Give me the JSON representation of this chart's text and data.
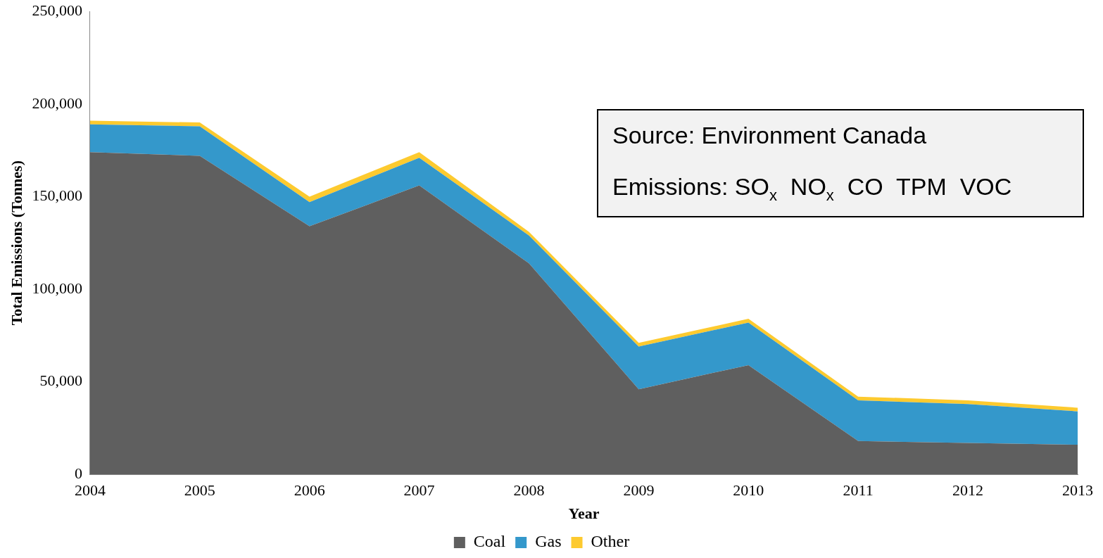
{
  "chart_data": {
    "type": "area",
    "stacked": true,
    "xlabel": "Year",
    "ylabel": "Total Emissions (Tonnes)",
    "categories": [
      "2004",
      "2005",
      "2006",
      "2007",
      "2008",
      "2009",
      "2010",
      "2011",
      "2012",
      "2013"
    ],
    "series": [
      {
        "name": "Coal",
        "color": "#5f5f5f",
        "values": [
          174000,
          172000,
          134000,
          156000,
          114000,
          46000,
          59000,
          18000,
          17000,
          16000
        ]
      },
      {
        "name": "Gas",
        "color": "#3498cb",
        "values": [
          15000,
          16000,
          13000,
          15000,
          15000,
          23000,
          23000,
          22000,
          21000,
          18000
        ]
      },
      {
        "name": "Other",
        "color": "#fdca2f",
        "values": [
          2000,
          2000,
          3000,
          3000,
          2000,
          2000,
          2000,
          2000,
          2000,
          2000
        ]
      }
    ],
    "ylim": [
      0,
      250000
    ],
    "yticks": [
      {
        "value": 0,
        "label": "0"
      },
      {
        "value": 50000,
        "label": "50,000"
      },
      {
        "value": 100000,
        "label": "100,000"
      },
      {
        "value": 150000,
        "label": "150,000"
      },
      {
        "value": 200000,
        "label": "200,000"
      },
      {
        "value": 250000,
        "label": "250,000"
      }
    ],
    "grid": false,
    "legend": "bottom",
    "annotations": [
      "Source: Environment Canada",
      "Emissions: SO$_{x}$  NO$_{x}$  CO  TPM  VOC"
    ]
  }
}
